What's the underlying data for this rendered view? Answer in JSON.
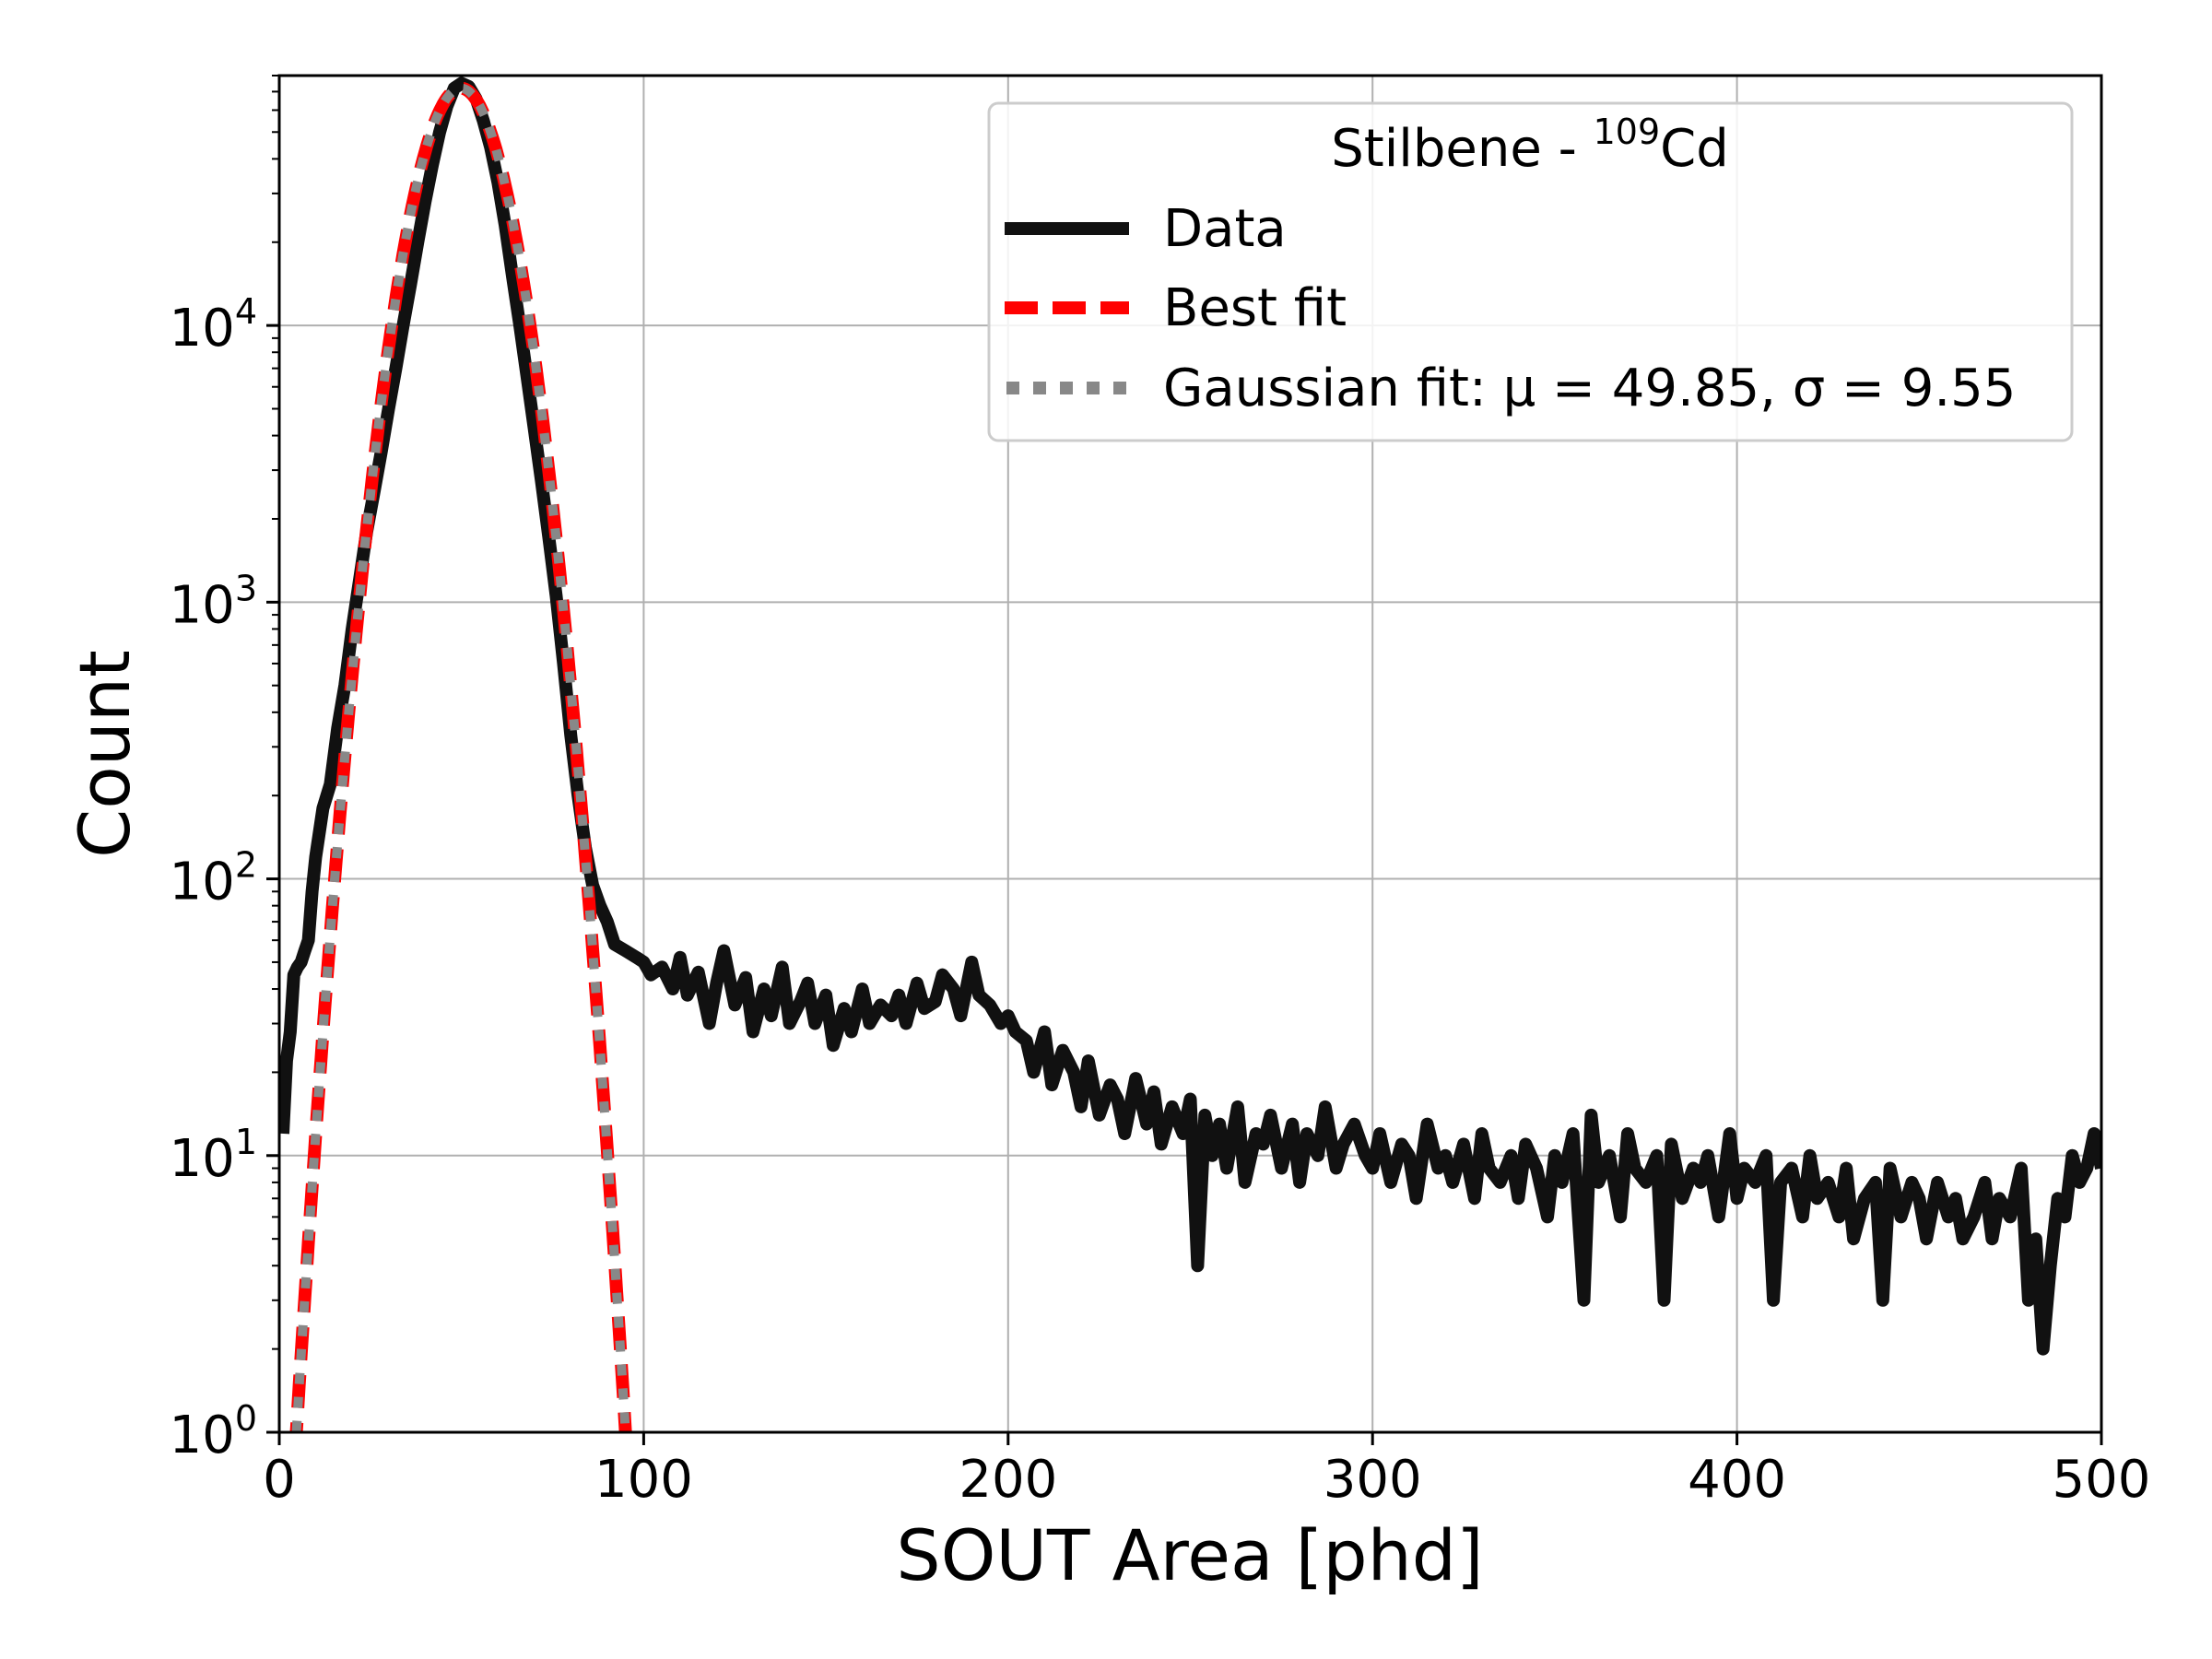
{
  "chart_data": {
    "type": "line",
    "xlabel": "SOUT Area [phd]",
    "ylabel": "Count",
    "xlim": [
      0,
      500
    ],
    "ylim": [
      1,
      80000
    ],
    "yscale": "log",
    "grid": true,
    "xticks": [
      0,
      100,
      200,
      300,
      400,
      500
    ],
    "yticks": [
      {
        "value": 1,
        "base": "10",
        "exp": "0"
      },
      {
        "value": 10,
        "base": "10",
        "exp": "1"
      },
      {
        "value": 100,
        "base": "10",
        "exp": "2"
      },
      {
        "value": 1000,
        "base": "10",
        "exp": "3"
      },
      {
        "value": 10000,
        "base": "10",
        "exp": "4"
      }
    ],
    "legend": {
      "title_prefix": "Stilbene - ",
      "title_sup": "109",
      "title_suffix": "Cd",
      "placement": "upper right",
      "entries": [
        {
          "name": "Data",
          "color": "#111111",
          "style": "solid"
        },
        {
          "name": "Best fit",
          "color": "#ff0000",
          "style": "dashed"
        },
        {
          "name": "Gaussian fit: μ = 49.85, σ = 9.55",
          "color": "#888888",
          "style": "dotted"
        }
      ]
    },
    "gaussian_fit": {
      "mu": 49.85,
      "sigma": 9.55,
      "amplitude": 72000
    },
    "series": [
      {
        "name": "Data",
        "color": "#111111",
        "points": [
          [
            1,
            12
          ],
          [
            2,
            22
          ],
          [
            3,
            28
          ],
          [
            4,
            45
          ],
          [
            5,
            48
          ],
          [
            6,
            50
          ],
          [
            7,
            55
          ],
          [
            8,
            60
          ],
          [
            9,
            90
          ],
          [
            10,
            120
          ],
          [
            12,
            180
          ],
          [
            14,
            220
          ],
          [
            16,
            350
          ],
          [
            18,
            500
          ],
          [
            20,
            800
          ],
          [
            22,
            1200
          ],
          [
            24,
            1800
          ],
          [
            26,
            2500
          ],
          [
            28,
            3500
          ],
          [
            30,
            5000
          ],
          [
            32,
            7000
          ],
          [
            34,
            10000
          ],
          [
            36,
            14000
          ],
          [
            38,
            20000
          ],
          [
            40,
            28000
          ],
          [
            42,
            38000
          ],
          [
            44,
            50000
          ],
          [
            46,
            62000
          ],
          [
            48,
            72000
          ],
          [
            50,
            75000
          ],
          [
            52,
            73000
          ],
          [
            54,
            66000
          ],
          [
            56,
            55000
          ],
          [
            58,
            44000
          ],
          [
            60,
            33000
          ],
          [
            62,
            23000
          ],
          [
            64,
            15000
          ],
          [
            66,
            10000
          ],
          [
            68,
            6500
          ],
          [
            70,
            4200
          ],
          [
            72,
            2700
          ],
          [
            74,
            1700
          ],
          [
            76,
            1050
          ],
          [
            78,
            600
          ],
          [
            80,
            330
          ],
          [
            82,
            200
          ],
          [
            84,
            130
          ],
          [
            86,
            95
          ],
          [
            88,
            80
          ],
          [
            90,
            70
          ],
          [
            92,
            58
          ],
          [
            95,
            55
          ],
          [
            98,
            52
          ],
          [
            100,
            50
          ],
          [
            102,
            45
          ],
          [
            105,
            48
          ],
          [
            108,
            40
          ],
          [
            110,
            52
          ],
          [
            112,
            38
          ],
          [
            115,
            46
          ],
          [
            118,
            30
          ],
          [
            120,
            42
          ],
          [
            122,
            55
          ],
          [
            125,
            35
          ],
          [
            128,
            44
          ],
          [
            130,
            28
          ],
          [
            133,
            40
          ],
          [
            135,
            32
          ],
          [
            138,
            48
          ],
          [
            140,
            30
          ],
          [
            143,
            36
          ],
          [
            145,
            42
          ],
          [
            147,
            30
          ],
          [
            150,
            38
          ],
          [
            152,
            25
          ],
          [
            155,
            34
          ],
          [
            157,
            28
          ],
          [
            160,
            40
          ],
          [
            162,
            30
          ],
          [
            165,
            35
          ],
          [
            168,
            32
          ],
          [
            170,
            38
          ],
          [
            172,
            30
          ],
          [
            175,
            42
          ],
          [
            177,
            34
          ],
          [
            180,
            36
          ],
          [
            182,
            45
          ],
          [
            185,
            40
          ],
          [
            187,
            32
          ],
          [
            190,
            50
          ],
          [
            192,
            38
          ],
          [
            195,
            35
          ],
          [
            198,
            30
          ],
          [
            200,
            32
          ],
          [
            202,
            28
          ],
          [
            205,
            26
          ],
          [
            207,
            20
          ],
          [
            210,
            28
          ],
          [
            212,
            18
          ],
          [
            215,
            24
          ],
          [
            218,
            20
          ],
          [
            220,
            15
          ],
          [
            222,
            22
          ],
          [
            225,
            14
          ],
          [
            228,
            18
          ],
          [
            230,
            16
          ],
          [
            232,
            12
          ],
          [
            235,
            19
          ],
          [
            238,
            13
          ],
          [
            240,
            17
          ],
          [
            242,
            11
          ],
          [
            245,
            15
          ],
          [
            248,
            12
          ],
          [
            250,
            16
          ],
          [
            252,
            4
          ],
          [
            254,
            14
          ],
          [
            256,
            10
          ],
          [
            258,
            13
          ],
          [
            260,
            9
          ],
          [
            263,
            15
          ],
          [
            265,
            8
          ],
          [
            268,
            12
          ],
          [
            270,
            11
          ],
          [
            272,
            14
          ],
          [
            275,
            9
          ],
          [
            278,
            13
          ],
          [
            280,
            8
          ],
          [
            282,
            12
          ],
          [
            285,
            10
          ],
          [
            287,
            15
          ],
          [
            290,
            9
          ],
          [
            292,
            11
          ],
          [
            295,
            13
          ],
          [
            298,
            10
          ],
          [
            300,
            9
          ],
          [
            302,
            12
          ],
          [
            305,
            8
          ],
          [
            308,
            11
          ],
          [
            310,
            10
          ],
          [
            312,
            7
          ],
          [
            315,
            13
          ],
          [
            318,
            9
          ],
          [
            320,
            10
          ],
          [
            322,
            8
          ],
          [
            325,
            11
          ],
          [
            328,
            7
          ],
          [
            330,
            12
          ],
          [
            332,
            9
          ],
          [
            335,
            8
          ],
          [
            338,
            10
          ],
          [
            340,
            7
          ],
          [
            342,
            11
          ],
          [
            345,
            9
          ],
          [
            348,
            6
          ],
          [
            350,
            10
          ],
          [
            352,
            8
          ],
          [
            355,
            12
          ],
          [
            358,
            3
          ],
          [
            360,
            14
          ],
          [
            362,
            8
          ],
          [
            365,
            10
          ],
          [
            368,
            6
          ],
          [
            370,
            12
          ],
          [
            372,
            9
          ],
          [
            375,
            8
          ],
          [
            378,
            10
          ],
          [
            380,
            3
          ],
          [
            382,
            11
          ],
          [
            385,
            7
          ],
          [
            388,
            9
          ],
          [
            390,
            8
          ],
          [
            392,
            10
          ],
          [
            395,
            6
          ],
          [
            398,
            12
          ],
          [
            400,
            7
          ],
          [
            402,
            9
          ],
          [
            405,
            8
          ],
          [
            408,
            10
          ],
          [
            410,
            3
          ],
          [
            412,
            8
          ],
          [
            415,
            9
          ],
          [
            418,
            6
          ],
          [
            420,
            10
          ],
          [
            422,
            7
          ],
          [
            425,
            8
          ],
          [
            428,
            6
          ],
          [
            430,
            9
          ],
          [
            432,
            5
          ],
          [
            435,
            7
          ],
          [
            438,
            8
          ],
          [
            440,
            3
          ],
          [
            442,
            9
          ],
          [
            445,
            6
          ],
          [
            448,
            8
          ],
          [
            450,
            7
          ],
          [
            452,
            5
          ],
          [
            455,
            8
          ],
          [
            458,
            6
          ],
          [
            460,
            7
          ],
          [
            462,
            5
          ],
          [
            465,
            6
          ],
          [
            468,
            8
          ],
          [
            470,
            5
          ],
          [
            472,
            7
          ],
          [
            475,
            6
          ],
          [
            478,
            9
          ],
          [
            480,
            3
          ],
          [
            482,
            5
          ],
          [
            484,
            2
          ],
          [
            486,
            4
          ],
          [
            488,
            7
          ],
          [
            490,
            6
          ],
          [
            492,
            10
          ],
          [
            494,
            8
          ],
          [
            496,
            9
          ],
          [
            498,
            12
          ],
          [
            500,
            9
          ]
        ]
      }
    ]
  }
}
